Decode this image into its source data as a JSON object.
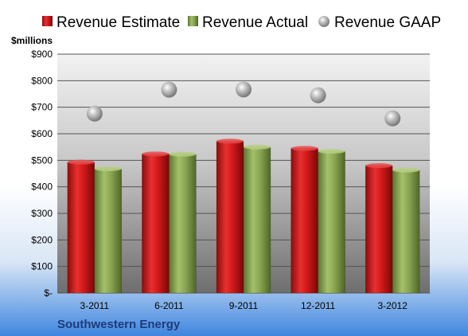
{
  "chart_data": {
    "type": "bar",
    "categories": [
      "3-2011",
      "6-2011",
      "9-2011",
      "12-2011",
      "3-2012"
    ],
    "series": [
      {
        "name": "Revenue Estimate",
        "kind": "bar",
        "color": "#cc1a1a",
        "values": [
          493,
          524,
          572,
          545,
          480
        ]
      },
      {
        "name": "Revenue Actual",
        "kind": "bar",
        "color": "#8aa653",
        "values": [
          468,
          523,
          550,
          534,
          463
        ]
      },
      {
        "name": "Revenue GAAP",
        "kind": "marker",
        "color": "#a8a8a8",
        "values": [
          676,
          766,
          767,
          745,
          658
        ]
      }
    ],
    "ylabel": "$millions",
    "ylim": [
      0,
      900
    ],
    "yticks": [
      0,
      100,
      200,
      300,
      400,
      500,
      600,
      700,
      800,
      900
    ],
    "ytick_labels": [
      "$-",
      "$100",
      "$200",
      "$300",
      "$400",
      "$500",
      "$600",
      "$700",
      "$800",
      "$900"
    ],
    "grid": true,
    "legend_position": "top",
    "company": "Southwestern Energy"
  }
}
